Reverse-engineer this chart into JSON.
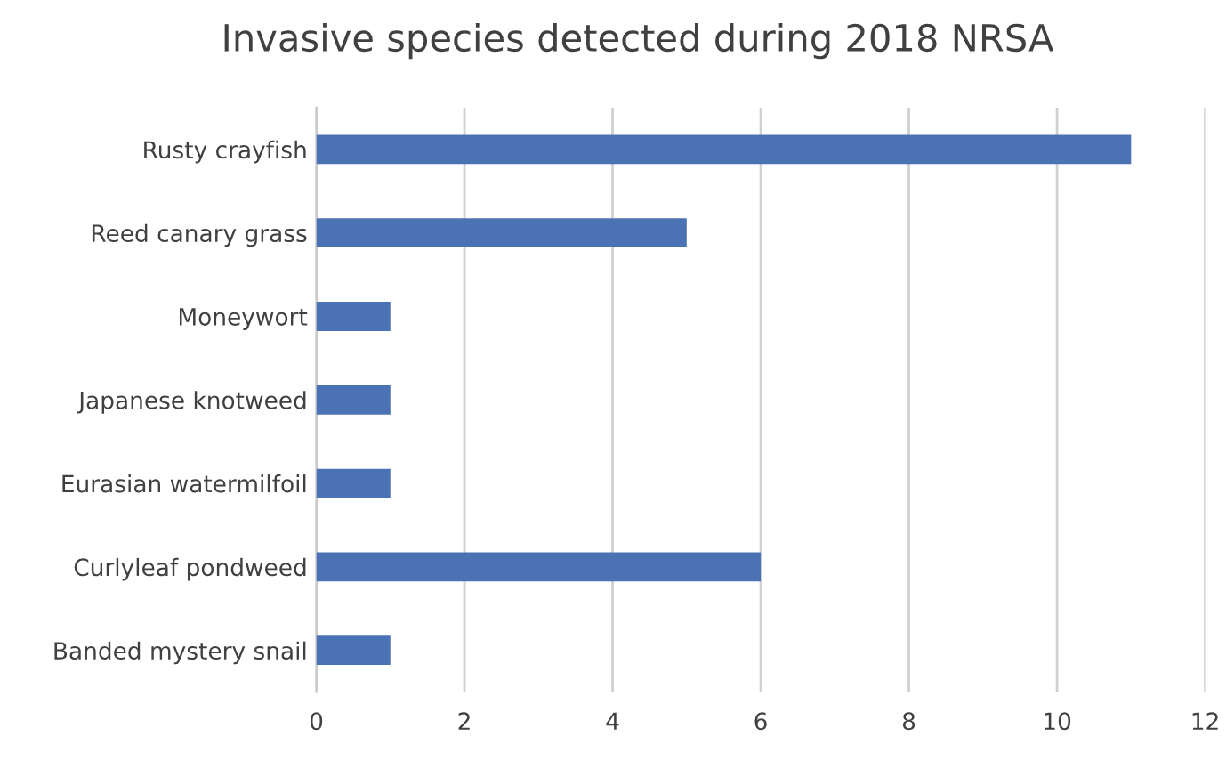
{
  "chart_data": {
    "type": "bar",
    "orientation": "horizontal",
    "title": "Invasive species detected during 2018 NRSA",
    "categories": [
      "Rusty crayfish",
      "Reed canary grass",
      "Moneywort",
      "Japanese knotweed",
      "Eurasian watermilfoil",
      "Curlyleaf pondweed",
      "Banded mystery snail"
    ],
    "values": [
      11,
      5,
      1,
      1,
      1,
      6,
      1
    ],
    "color": "#4a72b4",
    "xlim": [
      0,
      12
    ],
    "xticks": [
      0,
      2,
      4,
      6,
      8,
      10,
      12
    ],
    "grid": "x"
  }
}
